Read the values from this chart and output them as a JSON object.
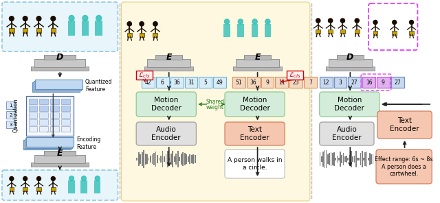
{
  "panel1": {
    "label_D": "D",
    "label_E": "E",
    "label_quantized": "Quantized\nFeature",
    "label_encoding": "Encoding\nFeature",
    "label_quantization": "Quantization"
  },
  "panel2": {
    "bg_color": "#FFF8E1",
    "bg_border": "#e8d080",
    "motion_decoder_color": "#d4edda",
    "motion_decoder_border": "#90c890",
    "audio_encoder_color": "#e0e0e0",
    "audio_encoder_border": "#a0a0a0",
    "text_encoder_color": "#f5c6b0",
    "text_encoder_border": "#d08060",
    "token_color_audio": "#d8edf8",
    "token_border_audio": "#70b0d8",
    "token_color_text": "#f5d8c0",
    "token_border_text": "#d89060",
    "tokens_audio": [
      "42",
      "6",
      "36",
      "31",
      "5",
      "49"
    ],
    "tokens_text": [
      "51",
      "36",
      "9",
      "11",
      "23",
      "7"
    ],
    "shared_arrow_color": "#20a020",
    "red_color": "#cc0000",
    "text_input": "A person walks in\na circle."
  },
  "panel3": {
    "motion_decoder_color": "#d4edda",
    "motion_decoder_border": "#90c890",
    "audio_encoder_color": "#e0e0e0",
    "audio_encoder_border": "#a0a0a0",
    "text_encoder_color": "#f5c6b0",
    "text_encoder_border": "#d08060",
    "token_color": "#c8d8f0",
    "token_border": "#7090c0",
    "token_highlight_color": "#e0b0f0",
    "token_highlight_border": "#c060d0",
    "tokens": [
      "12",
      "3",
      "27",
      "16",
      "9",
      "27"
    ],
    "highlight_indices": [
      3,
      4
    ],
    "pink_color": "#e040fb",
    "effect_text": "Effect range: 6s ~ 8s\nA person does a\ncartwheel.",
    "label_D": "D"
  },
  "colors": {
    "arrow": "#222222",
    "dashed_border": "#90c8e0",
    "light_blue_bg": "#e8f5fa",
    "gray_block_dark": "#b8b8b8",
    "gray_block_mid": "#c8c8c8",
    "gray_block_light": "#d8d8d8",
    "gray_block_border": "#909090",
    "sep_color": "#bbbbbb",
    "quant_border": "#6090c0",
    "quant_fill1": "#c0d8f0",
    "quant_fill2": "#b0c8e0",
    "quant_fill3": "#a0b8d0",
    "codebook_bg": "#f0f4ff",
    "codebook_cell_blue": "#b8d0f0",
    "codebook_cell_light": "#d8e8f8"
  }
}
